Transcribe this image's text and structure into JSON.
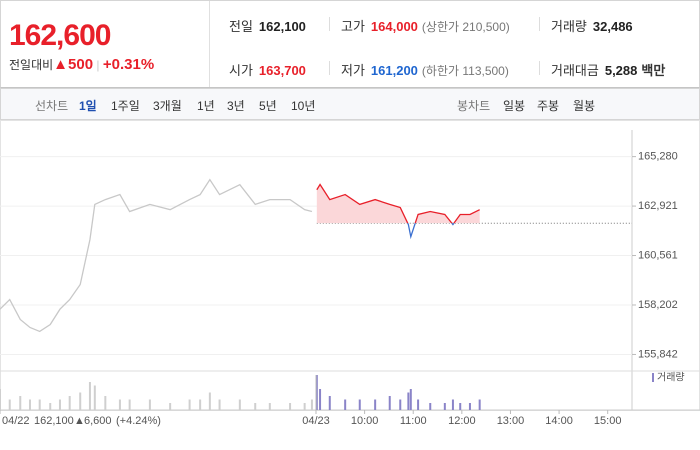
{
  "header": {
    "price": "162,600",
    "change_label": "전일대비",
    "change": "500",
    "change_pct": "+0.31%",
    "stats": [
      {
        "label": "전일",
        "value": "162,100"
      },
      {
        "label": "고가",
        "value": "164,000",
        "extra": "(상한가 210,500)"
      },
      {
        "label": "거래량",
        "value": "32,486"
      },
      {
        "label": "시가",
        "value": "163,700"
      },
      {
        "label": "저가",
        "value": "161,200",
        "extra": "(하한가 113,500)"
      },
      {
        "label": "거래대금",
        "value": "5,288",
        "unit": "백만"
      }
    ]
  },
  "tabs": {
    "line_label": "선차트",
    "line": [
      "1일",
      "1주일",
      "3개월",
      "1년",
      "3년",
      "5년",
      "10년"
    ],
    "candle_label": "봉차트",
    "candle": [
      "일봉",
      "주봉",
      "월봉"
    ]
  },
  "chart_data": {
    "type": "line",
    "reference": 162100,
    "ylim": [
      155100,
      166550
    ],
    "yticks": [
      {
        "value": 165280,
        "label": "165,280"
      },
      {
        "value": 162921,
        "label": "162,921"
      },
      {
        "value": 160561,
        "label": "160,561"
      },
      {
        "value": 158202,
        "label": "158,202"
      },
      {
        "value": 155842,
        "label": "155,842"
      }
    ],
    "xlim": [
      0,
      780
    ],
    "xticks": [
      {
        "value": 0,
        "label": "04/22"
      },
      {
        "value": 390,
        "label": "04/23"
      },
      {
        "value": 450,
        "label": "10:00"
      },
      {
        "value": 510,
        "label": "11:00"
      },
      {
        "value": 570,
        "label": "12:00"
      },
      {
        "value": 630,
        "label": "13:00"
      },
      {
        "value": 690,
        "label": "14:00"
      },
      {
        "value": 750,
        "label": "15:00"
      }
    ],
    "prev_summary": {
      "close": "162,100",
      "change": "6,600",
      "pct": "(+4.24%)"
    },
    "volume_label": "거래량",
    "series": [
      {
        "name": "04/22",
        "color": "#c8c8c8",
        "x": [
          0,
          12,
          25,
          37,
          49,
          62,
          74,
          86,
          99,
          111,
          117,
          130,
          148,
          160,
          185,
          210,
          234,
          247,
          259,
          271,
          296,
          315,
          333,
          358,
          376,
          385
        ],
        "values": [
          158000,
          158460,
          157510,
          157130,
          156940,
          157270,
          158000,
          158460,
          159180,
          161320,
          163000,
          163230,
          163470,
          162660,
          163000,
          162750,
          163230,
          163470,
          164180,
          163470,
          163940,
          163000,
          163230,
          163230,
          162750,
          162660
        ],
        "volume": [
          6,
          3,
          4,
          3,
          3,
          2,
          3,
          4,
          5,
          8,
          7,
          4,
          3,
          3,
          3,
          2,
          3,
          3,
          5,
          3,
          3,
          2,
          2,
          2,
          2,
          3
        ]
      },
      {
        "name": "04/23",
        "color": "#e8202a",
        "below_color": "#3a6fd0",
        "x": [
          391,
          395,
          407,
          426,
          444,
          463,
          481,
          494,
          504,
          507,
          516,
          531,
          549,
          559,
          568,
          580,
          592
        ],
        "values": [
          163700,
          163950,
          163230,
          163470,
          163000,
          163230,
          163000,
          162850,
          162040,
          161460,
          162520,
          162660,
          162520,
          162040,
          162520,
          162520,
          162750
        ],
        "volume": [
          10,
          6,
          4,
          3,
          3,
          3,
          4,
          3,
          5,
          6,
          3,
          2,
          2,
          3,
          2,
          2,
          3
        ]
      }
    ]
  }
}
